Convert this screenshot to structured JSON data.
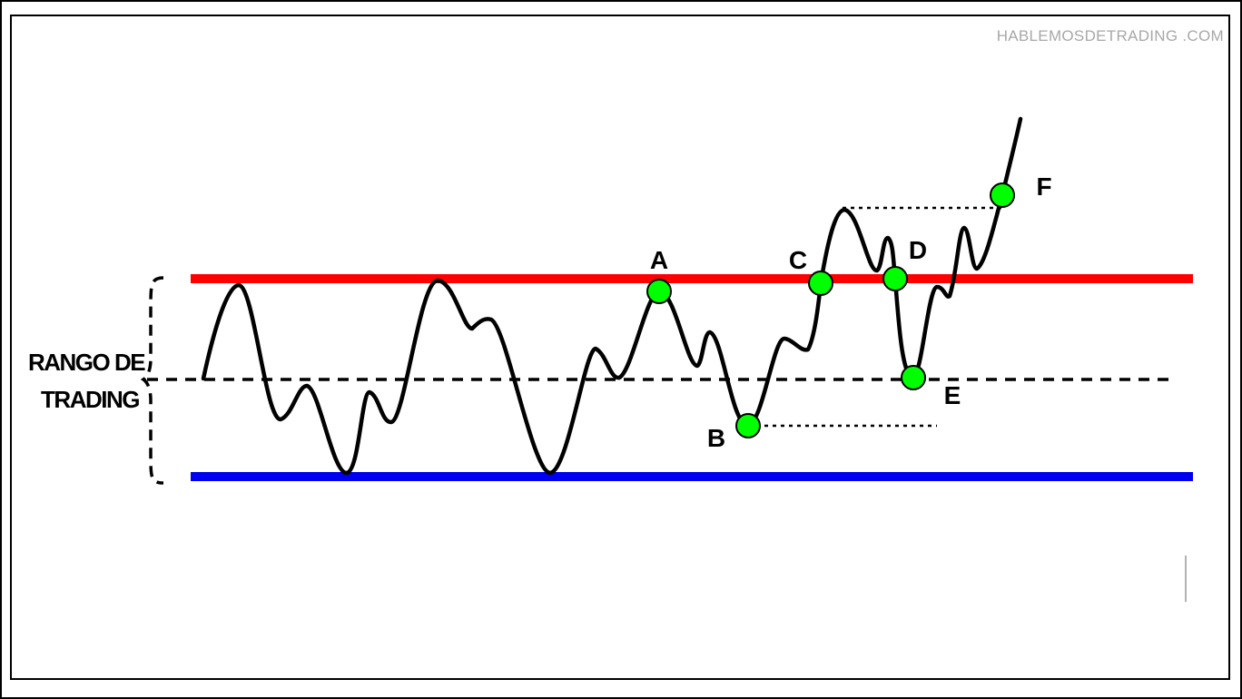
{
  "watermark": "HABLEMOSDETRADING .COM",
  "range_label": {
    "line1": "RANGO DE",
    "line2": "TRADING"
  },
  "points": [
    {
      "id": "A",
      "label": "A"
    },
    {
      "id": "B",
      "label": "B"
    },
    {
      "id": "C",
      "label": "C"
    },
    {
      "id": "D",
      "label": "D"
    },
    {
      "id": "E",
      "label": "E"
    },
    {
      "id": "F",
      "label": "F"
    }
  ],
  "colors": {
    "resistance": "#ff0000",
    "support": "#0000ee",
    "point_fill": "#00ff00",
    "price": "#000000",
    "frame": "#000000"
  }
}
